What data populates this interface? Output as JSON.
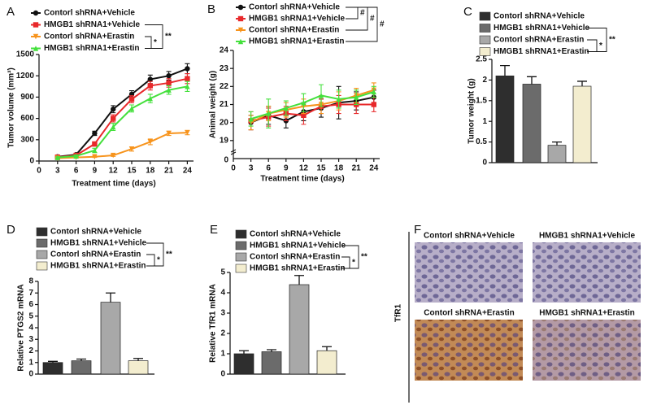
{
  "chart_data": [
    {
      "type": "line",
      "panel_label": "A",
      "ylabel": "Tumor volume (mm³)",
      "xlabel": "Treatment time (days)",
      "x": [
        3,
        6,
        9,
        12,
        15,
        18,
        21,
        24
      ],
      "xlim": [
        0,
        25
      ],
      "xticks": [
        0,
        3,
        6,
        9,
        12,
        15,
        18,
        21,
        24
      ],
      "ylim": [
        0,
        1500
      ],
      "yticks": [
        0,
        300,
        600,
        900,
        1200,
        1500
      ],
      "series": [
        {
          "name": "Contorl shRNA+Vehicle",
          "color": "#111111",
          "values": [
            60,
            90,
            390,
            730,
            940,
            1150,
            1200,
            1300
          ],
          "errors": [
            10,
            15,
            30,
            50,
            50,
            60,
            60,
            70
          ]
        },
        {
          "name": "HMGB1 shRNA1+Vehicle",
          "color": "#e8282a",
          "values": [
            55,
            80,
            240,
            600,
            870,
            1060,
            1100,
            1160
          ],
          "errors": [
            10,
            15,
            30,
            50,
            50,
            60,
            60,
            70
          ]
        },
        {
          "name": "Contorl shRNA+Erastin",
          "color": "#f7941d",
          "values": [
            40,
            50,
            60,
            80,
            170,
            270,
            390,
            400
          ],
          "errors": [
            8,
            10,
            10,
            15,
            30,
            40,
            30,
            30
          ]
        },
        {
          "name": "HMGB1 shRNA1+Erastin",
          "color": "#44e03c",
          "values": [
            50,
            70,
            150,
            480,
            740,
            880,
            1000,
            1050
          ],
          "errors": [
            10,
            15,
            30,
            50,
            50,
            60,
            60,
            70
          ]
        }
      ],
      "annotations": [
        "*",
        "**"
      ]
    },
    {
      "type": "line",
      "panel_label": "B",
      "ylabel": "Animal weight (g)",
      "xlabel": "Treatment time (days)",
      "x": [
        3,
        6,
        9,
        12,
        15,
        18,
        21,
        24
      ],
      "xlim": [
        0,
        25
      ],
      "xticks": [
        0,
        3,
        6,
        9,
        12,
        15,
        18,
        21,
        24
      ],
      "ylim": [
        18,
        24
      ],
      "yticks": [
        19,
        20,
        21,
        22,
        23,
        24
      ],
      "axis_break_label": "0",
      "series": [
        {
          "name": "Contorl shRNA+Vehicle",
          "color": "#111111",
          "values": [
            20,
            20.4,
            20.1,
            20.6,
            20.8,
            21.1,
            21.2,
            21.4
          ],
          "errors": [
            0.4,
            0.5,
            0.4,
            0.5,
            0.5,
            0.9,
            0.5,
            0.4
          ]
        },
        {
          "name": "HMGB1 shRNA1+Vehicle",
          "color": "#e8282a",
          "values": [
            20.1,
            20.3,
            20.5,
            20.4,
            20.9,
            21.0,
            21.0,
            21.0
          ],
          "errors": [
            0.5,
            0.5,
            0.4,
            0.5,
            0.4,
            0.5,
            0.5,
            0.4
          ]
        },
        {
          "name": "Contorl shRNA+Erastin",
          "color": "#f7941d",
          "values": [
            20.0,
            20.5,
            20.7,
            20.9,
            21.0,
            21.2,
            21.5,
            21.8
          ],
          "errors": [
            0.4,
            0.4,
            0.4,
            0.4,
            0.5,
            0.5,
            0.4,
            0.4
          ]
        },
        {
          "name": "HMGB1 shRNA1+Erastin",
          "color": "#44e03c",
          "values": [
            20.2,
            20.5,
            20.8,
            21.1,
            21.5,
            21.3,
            21.4,
            21.7
          ],
          "errors": [
            0.4,
            0.8,
            0.4,
            0.5,
            0.6,
            0.5,
            0.4,
            0.3
          ]
        }
      ],
      "annotations": [
        "#",
        "#",
        "#"
      ]
    },
    {
      "type": "bar",
      "panel_label": "C",
      "ylabel": "Tumor weight (g)",
      "categories": [
        "Contorl shRNA+Vehicle",
        "HMGB1 shRNA1+Vehicle",
        "Contorl shRNA+Erastin",
        "HMGB1 shRNA1+Erastin"
      ],
      "values": [
        2.1,
        1.9,
        0.42,
        1.85
      ],
      "errors": [
        0.25,
        0.18,
        0.08,
        0.12
      ],
      "colors": [
        "#2e2e2e",
        "#6b6b6b",
        "#a8a8a8",
        "#f3edcf"
      ],
      "ylim": [
        0,
        2.5
      ],
      "yticks": [
        0,
        0.5,
        1,
        1.5,
        2,
        2.5
      ],
      "annotations": [
        "*",
        "**"
      ]
    },
    {
      "type": "bar",
      "panel_label": "D",
      "ylabel": "Relative PTGS2 mRNA",
      "categories": [
        "Contorl shRNA+Vehicle",
        "HMGB1 shRNA1+Vehicle",
        "Contorl shRNA+Erastin",
        "HMGB1 shRNA1+Erastin"
      ],
      "values": [
        1,
        1.15,
        6.2,
        1.15
      ],
      "errors": [
        0.1,
        0.15,
        0.8,
        0.2
      ],
      "colors": [
        "#2e2e2e",
        "#6b6b6b",
        "#a8a8a8",
        "#f3edcf"
      ],
      "ylim": [
        0,
        8
      ],
      "yticks": [
        0,
        1,
        2,
        3,
        4,
        5,
        6,
        7,
        8
      ],
      "annotations": [
        "*",
        "**"
      ]
    },
    {
      "type": "bar",
      "panel_label": "E",
      "ylabel": "Relative TfR1 mRNA",
      "categories": [
        "Contorl shRNA+Vehicle",
        "HMGB1 shRNA1+Vehicle",
        "Contorl shRNA+Erastin",
        "HMGB1 shRNA1+Erastin"
      ],
      "values": [
        1,
        1.1,
        4.4,
        1.15
      ],
      "errors": [
        0.15,
        0.1,
        0.45,
        0.2
      ],
      "colors": [
        "#2e2e2e",
        "#6b6b6b",
        "#a8a8a8",
        "#f3edcf"
      ],
      "ylim": [
        0,
        5
      ],
      "yticks": [
        0,
        1,
        2,
        3,
        4,
        5
      ],
      "annotations": [
        "*",
        "**"
      ]
    }
  ],
  "image_panel": {
    "panel_label": "F",
    "row_label": "TfR1",
    "titles": [
      "Contorl shRNA+Vehicle",
      "HMGB1 shRNA1+Vehicle",
      "Contorl shRNA+Erastin",
      "HMGB1 shRNA1+Erastin"
    ]
  }
}
